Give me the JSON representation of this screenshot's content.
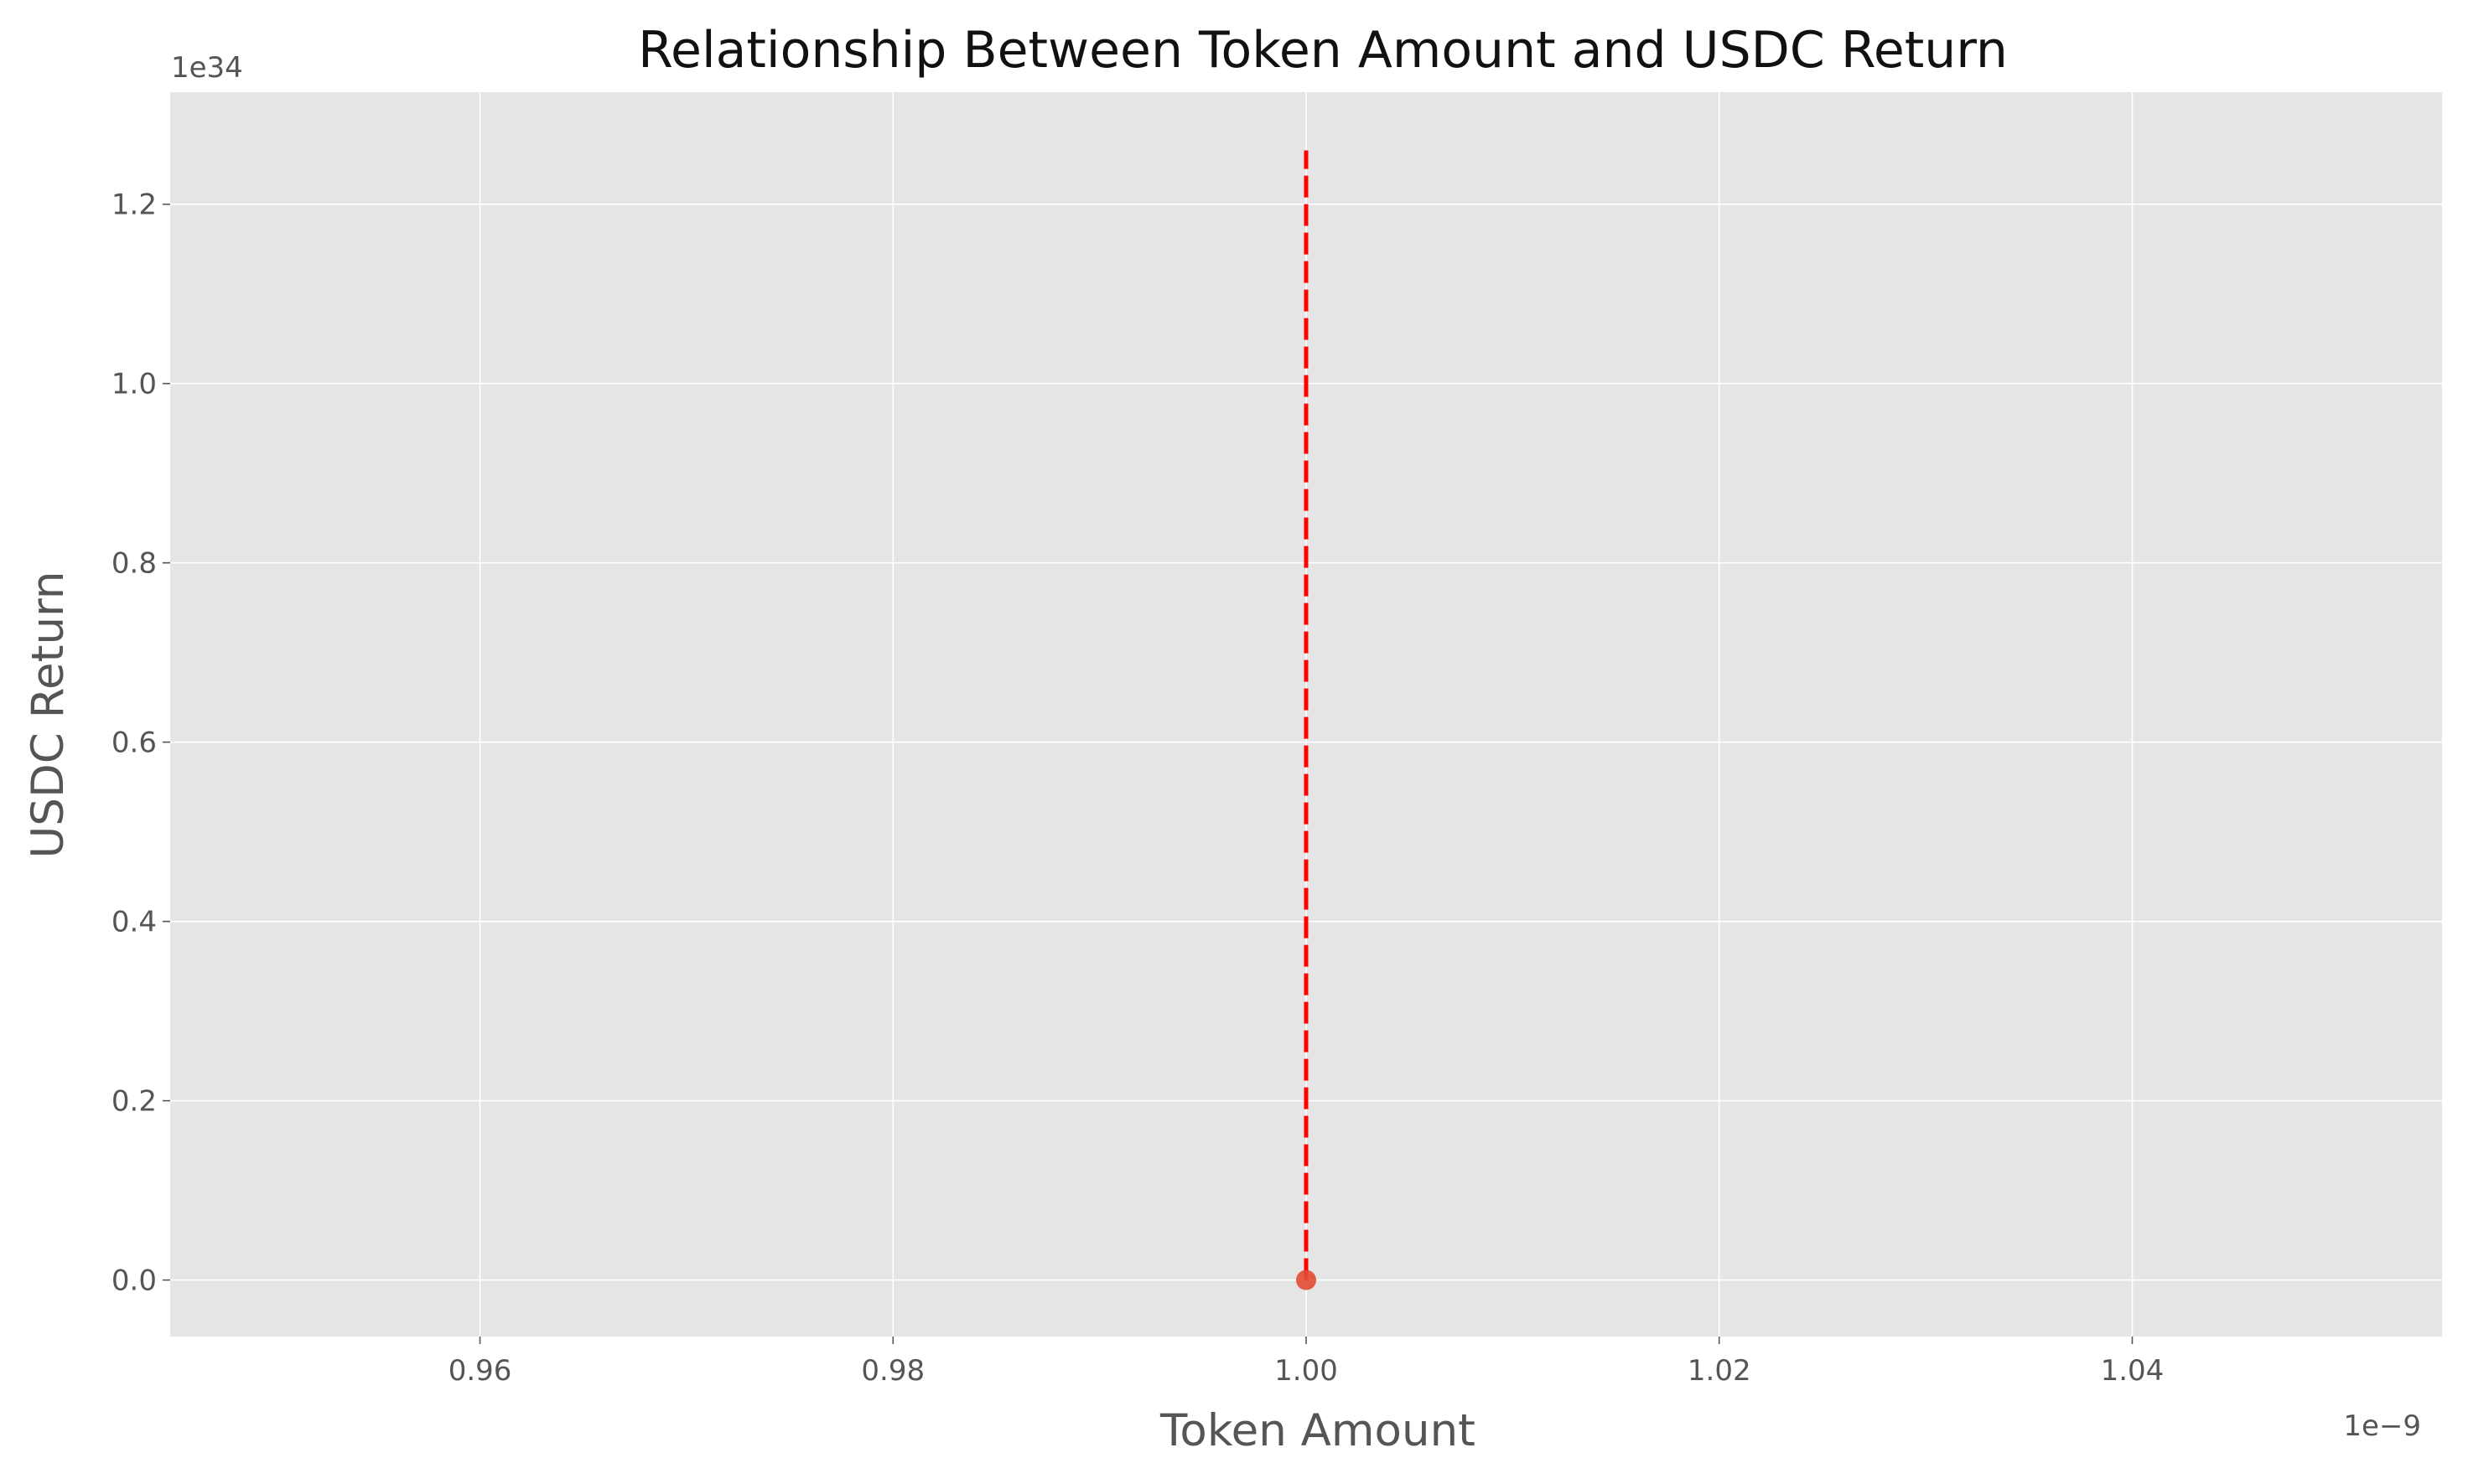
{
  "chart_data": {
    "type": "scatter",
    "title": "Relationship Between Token Amount and USDC Return",
    "xlabel": "Token Amount",
    "ylabel": "USDC Return",
    "x_offset_label": "1e−9",
    "y_offset_label": "1e34",
    "xlim": [
      0.945,
      1.055
    ],
    "ylim": [
      -0.063,
      1.325
    ],
    "x_ticks": [
      {
        "value": 0.96,
        "label": "0.96"
      },
      {
        "value": 0.98,
        "label": "0.98"
      },
      {
        "value": 1.0,
        "label": "1.00"
      },
      {
        "value": 1.02,
        "label": "1.02"
      },
      {
        "value": 1.04,
        "label": "1.04"
      }
    ],
    "y_ticks": [
      {
        "value": 0.0,
        "label": "0.0"
      },
      {
        "value": 0.2,
        "label": "0.2"
      },
      {
        "value": 0.4,
        "label": "0.4"
      },
      {
        "value": 0.6,
        "label": "0.6"
      },
      {
        "value": 0.8,
        "label": "0.8"
      },
      {
        "value": 1.0,
        "label": "1.0"
      },
      {
        "value": 1.2,
        "label": "1.2"
      }
    ],
    "grid": true,
    "series": [
      {
        "kind": "points",
        "color": "#e24a33",
        "points": [
          {
            "x": 1.0,
            "y": 0.0
          }
        ]
      },
      {
        "kind": "dashed-line",
        "color": "#ff0000",
        "points": [
          {
            "x": 1.0,
            "y": 0.0
          },
          {
            "x": 1.0,
            "y": 1.26
          }
        ]
      }
    ]
  }
}
